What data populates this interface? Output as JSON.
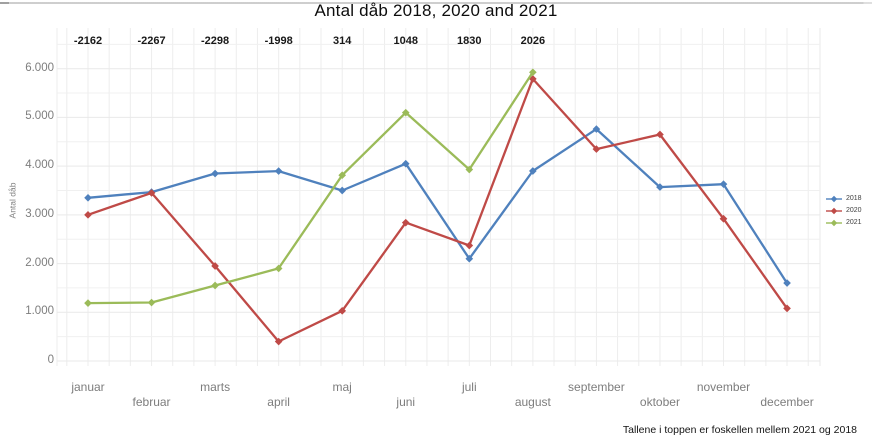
{
  "chart_data": {
    "type": "line",
    "title": "Antal dåb 2018, 2020 and 2021",
    "ylabel": "Antal dåb",
    "xlabel": "",
    "footnote": "Tallene i toppen er foskellen mellem 2021 og 2018",
    "categories": [
      "januar",
      "februar",
      "marts",
      "april",
      "maj",
      "juni",
      "juli",
      "august",
      "september",
      "oktober",
      "november",
      "december"
    ],
    "series": [
      {
        "name": "2018",
        "color": "#4f81bd",
        "values": [
          3350,
          3467,
          3848,
          3898,
          3500,
          4050,
          2100,
          3900,
          4760,
          3570,
          3630,
          1600
        ]
      },
      {
        "name": "2020",
        "color": "#bf4a47",
        "values": [
          3000,
          3450,
          1950,
          400,
          1030,
          2840,
          2370,
          5790,
          4350,
          4650,
          2920,
          1080
        ]
      },
      {
        "name": "2021",
        "color": "#9bbb59",
        "values": [
          1188,
          1200,
          1550,
          1900,
          3814,
          5098,
          3930,
          5926,
          null,
          null,
          null,
          null
        ]
      }
    ],
    "diff_labels": [
      "-2162",
      "-2267",
      "-2298",
      "-1998",
      "314",
      "1048",
      "1830",
      "2026"
    ],
    "yticks": [
      "0",
      "1.000",
      "2.000",
      "3.000",
      "4.000",
      "5.000",
      "6.000"
    ],
    "ylim": [
      0,
      6000
    ],
    "grid": true,
    "legend_position": "right"
  }
}
